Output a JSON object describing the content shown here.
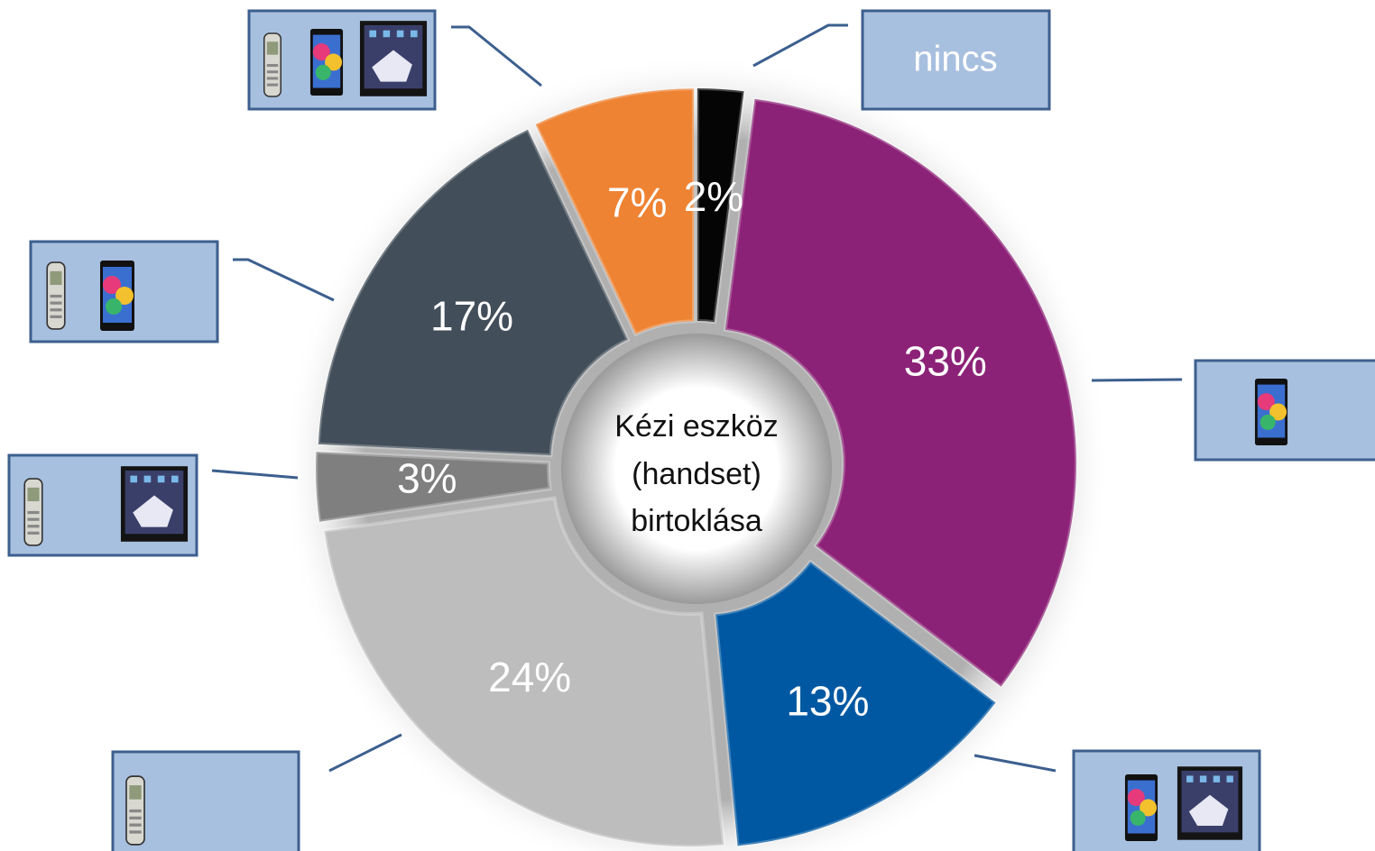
{
  "chart_data": {
    "type": "donut",
    "center_text": [
      "Kézi eszköz",
      "(handset)",
      "birtoklása"
    ],
    "categories": [
      "nincs",
      null,
      null,
      null,
      null,
      null,
      null
    ],
    "values": [
      2,
      33,
      13,
      24,
      3,
      17,
      7
    ],
    "value_labels": [
      "2%",
      "33%",
      "13%",
      "24%",
      "3%",
      "17%",
      "7%"
    ],
    "colors": [
      "#050505",
      "#8c2277",
      "#0058a2",
      "#bdbdbd",
      "#7f7f7f",
      "#424e59",
      "#ee8333"
    ]
  }
}
